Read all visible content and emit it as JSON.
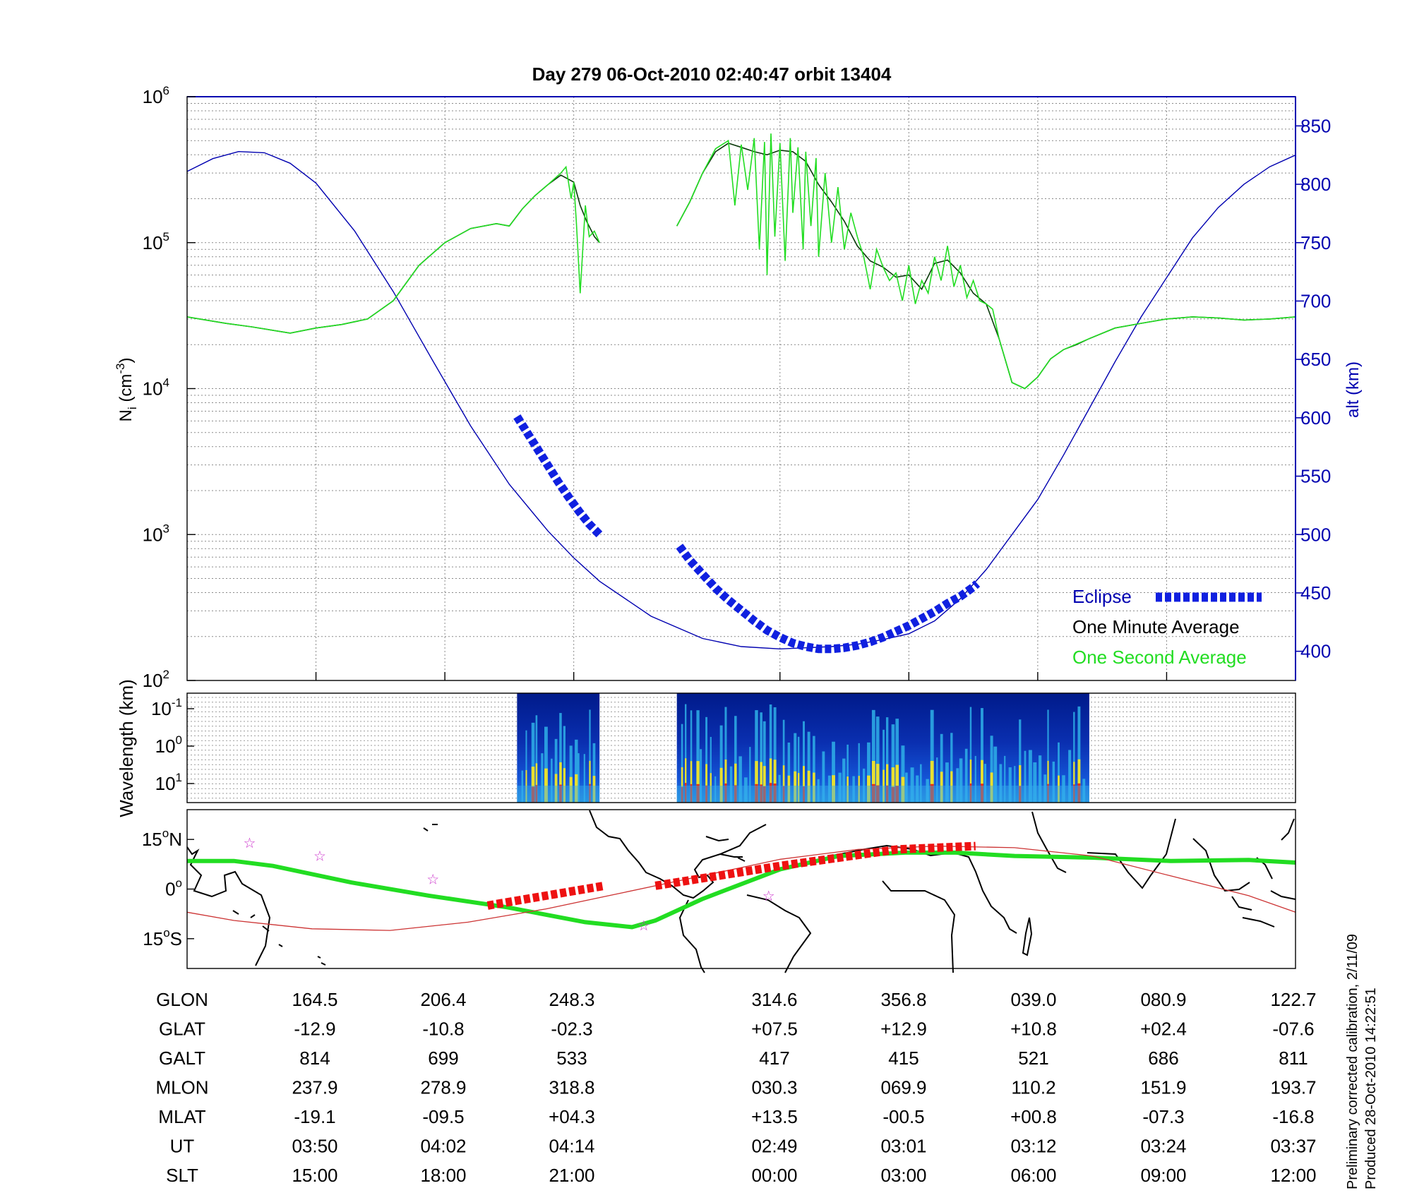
{
  "title": "Day 279  06-Oct-2010 02:40:47   orbit 13404",
  "colors": {
    "alt": "#0000b0",
    "one_minute": "#0a3a0a",
    "one_second": "#22dd22",
    "eclipse": "#1020e0",
    "track": "#22dd22",
    "track_eclipse": "#ee1111",
    "magnetic_equator": "#cc3333",
    "star": "#cc33cc"
  },
  "chart_data": [
    {
      "type": "line",
      "ylabel_left": "N",
      "ylabel_left_sub": "i",
      "ylabel_left_unit": "(cm",
      "ylabel_left_unit_exp": "-3",
      "ylabel_left_unit_close": ")",
      "ylabel_right": "alt (km)",
      "left_axis_scale": "log",
      "left_ylim": [
        100,
        1000000
      ],
      "left_ticks": [
        {
          "base": "10",
          "exp": "2",
          "value": 100
        },
        {
          "base": "10",
          "exp": "3",
          "value": 1000
        },
        {
          "base": "10",
          "exp": "4",
          "value": 10000
        },
        {
          "base": "10",
          "exp": "5",
          "value": 100000
        },
        {
          "base": "10",
          "exp": "6",
          "value": 1000000
        }
      ],
      "right_ylim": [
        375,
        875
      ],
      "right_ticks": [
        "400",
        "450",
        "500",
        "550",
        "600",
        "650",
        "700",
        "750",
        "800",
        "850"
      ],
      "x_range": [
        0,
        86
      ],
      "x_grid": [
        10,
        20,
        30,
        46,
        56,
        66,
        76
      ],
      "grid": true,
      "legend_position": "bottom-right",
      "legend": {
        "eclipse": "Eclipse",
        "one_minute": "One Minute Average",
        "one_second": "One Second Average"
      },
      "series": [
        {
          "key": "altitude",
          "axis": "right",
          "x": [
            0,
            2,
            4,
            6,
            8,
            10,
            13,
            16,
            19,
            22,
            25,
            28,
            30,
            32,
            36,
            40,
            43,
            46,
            48,
            50,
            52,
            54,
            56,
            58,
            60,
            62,
            64,
            66,
            68,
            70,
            72,
            74,
            76,
            78,
            80,
            82,
            84,
            86
          ],
          "y": [
            811,
            822,
            828,
            827,
            818,
            801,
            760,
            708,
            650,
            593,
            543,
            503,
            480,
            460,
            430,
            411,
            404,
            402,
            403,
            404,
            406,
            410,
            415,
            426,
            445,
            470,
            500,
            530,
            568,
            608,
            648,
            686,
            720,
            754,
            780,
            800,
            815,
            825
          ]
        },
        {
          "key": "one_minute",
          "axis": "left",
          "segments": [
            {
              "x": [
                0,
                3,
                5,
                8,
                10,
                12,
                14,
                16,
                18,
                20,
                22,
                24,
                25,
                26,
                27,
                28,
                29,
                30,
                30.5,
                31,
                31.6,
                32
              ],
              "y": [
                31000,
                28000,
                26500,
                24000,
                26000,
                27500,
                30000,
                40000,
                70000,
                100000,
                125000,
                135000,
                130000,
                170000,
                210000,
                250000,
                290000,
                260000,
                180000,
                140000,
                110000,
                100000
              ]
            },
            {
              "x": [
                38,
                39,
                40,
                41,
                42,
                43,
                44,
                45,
                46,
                47,
                48,
                49,
                50,
                51,
                52,
                53,
                54,
                55,
                56,
                57,
                58,
                59,
                60,
                61,
                62,
                63,
                64,
                65,
                66,
                67,
                68,
                69,
                70,
                72,
                74,
                76,
                78,
                80,
                82,
                84,
                86
              ],
              "y": [
                130000,
                190000,
                300000,
                420000,
                480000,
                450000,
                420000,
                400000,
                430000,
                420000,
                360000,
                250000,
                190000,
                140000,
                95000,
                75000,
                68000,
                58000,
                60000,
                48000,
                72000,
                76000,
                62000,
                45000,
                38000,
                22000,
                11000,
                10000,
                12000,
                16000,
                18500,
                20000,
                22000,
                26000,
                28000,
                30000,
                31000,
                30500,
                29500,
                30000,
                31000
              ]
            }
          ]
        },
        {
          "key": "one_second",
          "axis": "left",
          "segments": [
            {
              "x": [
                0,
                3,
                5,
                8,
                10,
                12,
                14,
                16,
                18,
                20,
                22,
                24,
                25,
                26,
                27,
                28,
                29,
                29.4,
                29.8,
                30,
                30.2,
                30.5,
                30.9,
                31.2,
                31.6,
                32
              ],
              "y": [
                31000,
                28000,
                26500,
                24000,
                26000,
                27500,
                30000,
                40000,
                70000,
                100000,
                125000,
                135000,
                130000,
                170000,
                210000,
                250000,
                300000,
                330000,
                200000,
                260000,
                140000,
                45000,
                180000,
                110000,
                120000,
                100000
              ]
            },
            {
              "x": [
                38,
                39,
                40,
                41,
                42,
                42.5,
                43,
                43.5,
                44,
                44.4,
                44.8,
                45,
                45.3,
                45.6,
                46,
                46.4,
                46.8,
                47,
                47.4,
                47.8,
                48,
                48.4,
                48.8,
                49,
                49.5,
                50,
                50.5,
                51,
                51.5,
                52,
                52.5,
                53,
                53.5,
                54,
                54.5,
                55,
                55.5,
                56,
                56.5,
                57,
                57.5,
                58,
                58.5,
                59,
                59.5,
                60,
                60.5,
                61,
                61.5,
                62,
                62.5,
                63,
                64,
                65,
                66,
                67,
                68,
                70,
                72,
                74,
                76,
                78,
                80,
                82,
                84,
                86
              ],
              "y": [
                130000,
                190000,
                300000,
                440000,
                500000,
                180000,
                470000,
                230000,
                520000,
                90000,
                490000,
                60000,
                560000,
                110000,
                480000,
                75000,
                520000,
                160000,
                450000,
                90000,
                420000,
                130000,
                380000,
                80000,
                300000,
                100000,
                240000,
                90000,
                160000,
                110000,
                80000,
                48000,
                90000,
                68000,
                55000,
                62000,
                40000,
                70000,
                38000,
                55000,
                45000,
                80000,
                55000,
                95000,
                50000,
                70000,
                42000,
                55000,
                40000,
                38000,
                35000,
                22000,
                11000,
                10000,
                12000,
                16000,
                18500,
                22000,
                26000,
                28000,
                30000,
                31000,
                30500,
                29500,
                30000,
                31000
              ]
            }
          ]
        },
        {
          "key": "eclipse",
          "axis": "right",
          "segments": [
            {
              "x": [
                25.6,
                26.4,
                27.2,
                28,
                28.8,
                29.6,
                30.4,
                31.2,
                32
              ],
              "y": [
                601,
                587,
                573,
                559,
                545,
                532,
                520,
                509,
                500
              ]
            },
            {
              "x": [
                38.2,
                39,
                40,
                41,
                42,
                43,
                44,
                45,
                46,
                47,
                48,
                49,
                50,
                51,
                52,
                53,
                54,
                55,
                56,
                57,
                58,
                59,
                60,
                61,
                61.3
              ],
              "y": [
                490,
                478,
                466,
                454,
                444,
                435,
                426,
                418,
                412,
                407,
                404,
                402,
                402,
                403,
                405,
                408,
                412,
                417,
                422,
                428,
                434,
                441,
                447,
                455,
                458
              ]
            }
          ]
        }
      ]
    },
    {
      "type": "heatmap",
      "ylabel": "Wavelength (km)",
      "y_scale": "log",
      "y_ticks": [
        {
          "base": "10",
          "exp": "-1"
        },
        {
          "base": "10",
          "exp": "0"
        },
        {
          "base": "10",
          "exp": "1"
        }
      ],
      "segments": [
        [
          25.6,
          32
        ],
        [
          38,
          70
        ]
      ],
      "x_range": [
        0,
        86
      ]
    },
    {
      "type": "line",
      "subtype": "map",
      "lon_range": [
        148,
        432
      ],
      "lat_range": [
        -24,
        24
      ],
      "y_ticks": [
        {
          "deg": "15",
          "suffix": "N",
          "value": 15
        },
        {
          "deg": "0",
          "suffix": "",
          "value": 0
        },
        {
          "deg": "15",
          "suffix": "S",
          "value": -15
        }
      ],
      "series": [
        {
          "key": "track",
          "x": [
            148,
            160,
            170,
            190,
            210,
            230,
            250,
            262,
            268,
            280,
            300,
            315,
            332,
            345,
            360,
            380,
            400,
            420,
            432
          ],
          "y": [
            8.5,
            8.5,
            7,
            2,
            -2,
            -5.5,
            -10,
            -11.5,
            -9.5,
            -3,
            6,
            10,
            11,
            11,
            10,
            9.5,
            8.5,
            8.8,
            8
          ]
        },
        {
          "key": "magnetic_equator",
          "x": [
            148,
            160,
            180,
            200,
            220,
            240,
            260,
            280,
            300,
            320,
            340,
            360,
            380,
            400,
            420,
            432
          ],
          "y": [
            -7,
            -9.5,
            -12,
            -12.5,
            -10,
            -6,
            -1,
            4,
            9,
            12,
            13,
            12.5,
            10,
            4,
            -2,
            -7
          ]
        },
        {
          "key": "track_eclipse",
          "segments": [
            {
              "x": [
                225,
                255
              ],
              "y": [
                -5,
                1
              ]
            },
            {
              "x": [
                268,
                300,
                330,
                350
              ],
              "y": [
                1,
                7,
                12,
                13
              ]
            }
          ]
        }
      ],
      "stars": [
        {
          "x": 164,
          "y": 14
        },
        {
          "x": 182,
          "y": 10
        },
        {
          "x": 211,
          "y": 3
        },
        {
          "x": 265,
          "y": -11
        },
        {
          "x": 297,
          "y": -2
        }
      ]
    }
  ],
  "table": {
    "rows": [
      {
        "label": "GLON",
        "values": [
          "164.5",
          "206.4",
          "248.3",
          "314.6",
          "356.8",
          "039.0",
          "080.9",
          "122.7"
        ]
      },
      {
        "label": "GLAT",
        "values": [
          "-12.9",
          "-10.8",
          "-02.3",
          "+07.5",
          "+12.9",
          "+10.8",
          "+02.4",
          "-07.6"
        ]
      },
      {
        "label": "GALT",
        "values": [
          "814",
          "699",
          "533",
          "417",
          "415",
          "521",
          "686",
          "811"
        ]
      },
      {
        "label": "MLON",
        "values": [
          "237.9",
          "278.9",
          "318.8",
          "030.3",
          "069.9",
          "110.2",
          "151.9",
          "193.7"
        ]
      },
      {
        "label": "MLAT",
        "values": [
          "-19.1",
          "-09.5",
          "+04.3",
          "+13.5",
          "-00.5",
          "+00.8",
          "-07.3",
          "-16.8"
        ]
      },
      {
        "label": "UT",
        "values": [
          "03:50",
          "04:02",
          "04:14",
          "02:49",
          "03:01",
          "03:12",
          "03:24",
          "03:37"
        ]
      },
      {
        "label": "SLT",
        "values": [
          "15:00",
          "18:00",
          "21:00",
          "00:00",
          "03:00",
          "06:00",
          "09:00",
          "12:00"
        ]
      }
    ]
  },
  "footnote": {
    "line1": "Preliminary corrected calibration, 2/11/09",
    "line2": "Produced 28-Oct-2010 14:22:51"
  }
}
